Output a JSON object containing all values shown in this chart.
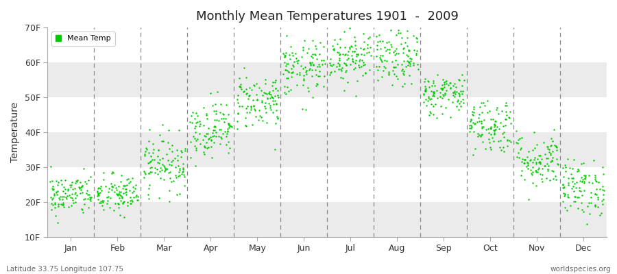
{
  "title": "Monthly Mean Temperatures 1901  -  2009",
  "ylabel": "Temperature",
  "xlabel_labels": [
    "Jan",
    "Feb",
    "Mar",
    "Apr",
    "May",
    "Jun",
    "Jul",
    "Aug",
    "Sep",
    "Oct",
    "Nov",
    "Dec"
  ],
  "ytick_labels": [
    "10F",
    "20F",
    "30F",
    "40F",
    "50F",
    "60F",
    "70F"
  ],
  "ytick_values": [
    10,
    20,
    30,
    40,
    50,
    60,
    70
  ],
  "ylim": [
    10,
    70
  ],
  "legend_label": "Mean Temp",
  "dot_color": "#00cc00",
  "bg_color": "#ffffff",
  "stripe_colors": [
    "#ffffff",
    "#ebebeb"
  ],
  "footer_left": "Latitude 33.75 Longitude 107.75",
  "footer_right": "worldspecies.org",
  "monthly_means": [
    22,
    22,
    31,
    41,
    49,
    58,
    62,
    61,
    51,
    42,
    32,
    24
  ],
  "monthly_stds": [
    3,
    3,
    4,
    4,
    4,
    4,
    4,
    4,
    3,
    4,
    4,
    4
  ],
  "n_years": 109,
  "random_seed": 42
}
